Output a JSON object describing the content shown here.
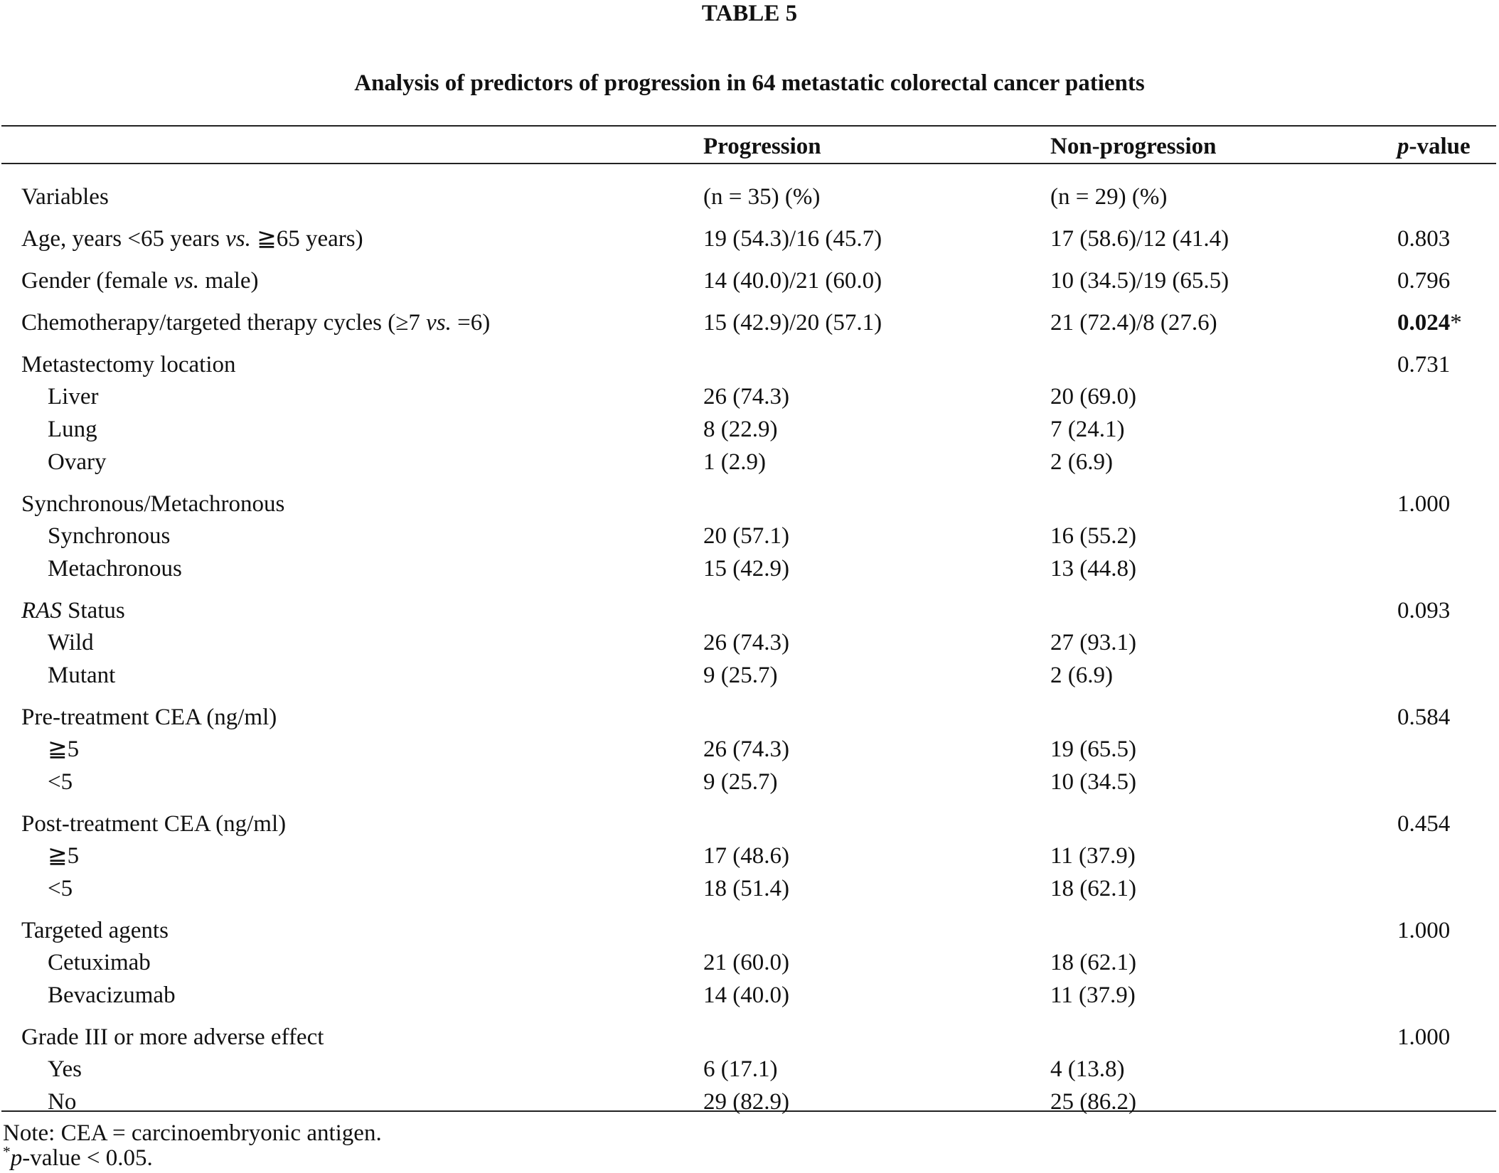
{
  "title": "TABLE 5",
  "caption": "Analysis of predictors of progression in 64 metastatic colorectal cancer patients",
  "header": [
    "Progression",
    "Non-progression",
    [
      {
        "text": "p",
        "italic": true
      },
      {
        "text": "-value"
      }
    ]
  ],
  "table": {
    "groups": [
      {
        "label": "Variables",
        "progression": "(n = 35) (%)",
        "non_progression": "(n = 29) (%)",
        "items": []
      },
      {
        "label": [
          {
            "text": "Age, years <65 years "
          },
          {
            "text": "vs.",
            "italic": true
          },
          {
            "text": " ≧65 years)"
          }
        ],
        "progression": "19 (54.3)/16 (45.7)",
        "non_progression": "17 (58.6)/12 (41.4)",
        "p": "0.803",
        "items": []
      },
      {
        "label": [
          {
            "text": "Gender (female "
          },
          {
            "text": "vs.",
            "italic": true
          },
          {
            "text": " male)"
          }
        ],
        "progression": "14 (40.0)/21 (60.0)",
        "non_progression": "10 (34.5)/19 (65.5)",
        "p": "0.796",
        "items": []
      },
      {
        "label": [
          {
            "text": "Chemotherapy/targeted therapy cycles (≥7 "
          },
          {
            "text": "vs.",
            "italic": true
          },
          {
            "text": " =6)"
          }
        ],
        "progression": "15 (42.9)/20 (57.1)",
        "non_progression": "21 (72.4)/8 (27.6)",
        "p": [
          {
            "text": "0.024",
            "bold": true
          },
          {
            "text": "*"
          }
        ],
        "items": []
      },
      {
        "label": "Metastectomy location",
        "p": "0.731",
        "items": [
          {
            "label": "Liver",
            "progression": "26 (74.3)",
            "non_progression": "20 (69.0)"
          },
          {
            "label": "Lung",
            "progression": "8 (22.9)",
            "non_progression": "7 (24.1)"
          },
          {
            "label": "Ovary",
            "progression": "1 (2.9)",
            "non_progression": "2 (6.9)"
          }
        ]
      },
      {
        "label": "Synchronous/Metachronous",
        "p": "1.000",
        "items": [
          {
            "label": "Synchronous",
            "progression": "20 (57.1)",
            "non_progression": "16 (55.2)"
          },
          {
            "label": "Metachronous",
            "progression": "15 (42.9)",
            "non_progression": "13 (44.8)"
          }
        ]
      },
      {
        "label": [
          {
            "text": "RAS",
            "italic": true
          },
          {
            "text": " Status"
          }
        ],
        "p": "0.093",
        "items": [
          {
            "label": "Wild",
            "progression": "26 (74.3)",
            "non_progression": "27 (93.1)"
          },
          {
            "label": "Mutant",
            "progression": "9 (25.7)",
            "non_progression": "2 (6.9)"
          }
        ]
      },
      {
        "label": "Pre-treatment CEA (ng/ml)",
        "p": "0.584",
        "items": [
          {
            "label": "≧5",
            "progression": "26 (74.3)",
            "non_progression": "19 (65.5)"
          },
          {
            "label": "<5",
            "progression": "9 (25.7)",
            "non_progression": "10 (34.5)"
          }
        ]
      },
      {
        "label": "Post-treatment CEA (ng/ml)",
        "p": "0.454",
        "items": [
          {
            "label": "≧5",
            "progression": "17 (48.6)",
            "non_progression": "11 (37.9)"
          },
          {
            "label": "<5",
            "progression": "18 (51.4)",
            "non_progression": "18 (62.1)"
          }
        ]
      },
      {
        "label": "Targeted agents",
        "p": "1.000",
        "items": [
          {
            "label": "Cetuximab",
            "progression": "21 (60.0)",
            "non_progression": "18 (62.1)"
          },
          {
            "label": "Bevacizumab",
            "progression": "14 (40.0)",
            "non_progression": "11 (37.9)"
          }
        ]
      },
      {
        "label": "Grade III or more adverse effect",
        "p": "1.000",
        "items": [
          {
            "label": "Yes",
            "progression": "6 (17.1)",
            "non_progression": "4 (13.8)"
          },
          {
            "label": "No",
            "progression": "29 (82.9)",
            "non_progression": "25 (86.2)"
          }
        ]
      }
    ]
  },
  "notes": [
    "Note: CEA = carcinoembryonic antigen.",
    [
      {
        "text": "*",
        "sup": true
      },
      {
        "text": "p",
        "italic": true
      },
      {
        "text": "-value < 0.05."
      }
    ]
  ]
}
